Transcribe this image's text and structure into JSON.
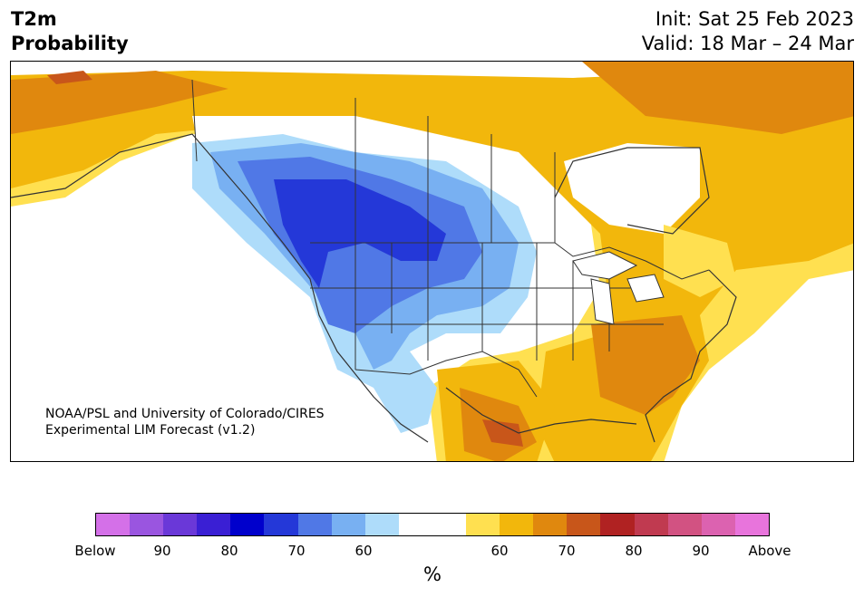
{
  "header": {
    "title_line1": "T2m",
    "title_line2": "Probability",
    "init": "Init: Sat 25 Feb 2023",
    "valid": "Valid: 18 Mar – 24 Mar"
  },
  "map": {
    "credit_line1": "NOAA/PSL and University of Colorado/CIRES",
    "credit_line2": "Experimental LIM Forecast (v1.2)"
  },
  "colorbar": {
    "unit": "%",
    "colors": [
      "#d470e8",
      "#9a55e0",
      "#6a38d8",
      "#3a1fd4",
      "#0000cc",
      "#2438d8",
      "#5078e6",
      "#78b0f2",
      "#aedcfa",
      "#ffffff",
      "#ffffff",
      "#ffe050",
      "#f2b70c",
      "#e0880e",
      "#c8561a",
      "#b02222",
      "#c03a50",
      "#d25282",
      "#dc62b0",
      "#e874dc"
    ],
    "labels": [
      "Below",
      "90",
      "80",
      "70",
      "60",
      "60",
      "70",
      "80",
      "90",
      "Above"
    ]
  }
}
